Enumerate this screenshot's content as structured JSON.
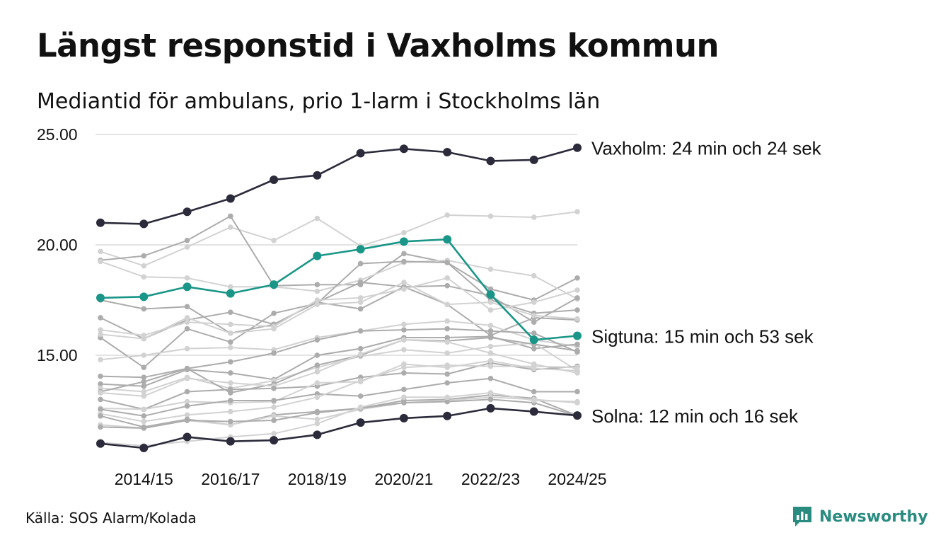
{
  "header": {
    "title": "Längst responstid i Vaxholms kommun",
    "subtitle": "Mediantid för ambulans, prio 1-larm i Stockholms län"
  },
  "footer": {
    "source": "Källa: SOS Alarm/Kolada",
    "brand": "Newsworthy"
  },
  "colors": {
    "highlight_dark": "#2b2b3b",
    "highlight_teal": "#1a9688",
    "background_light": "#d2d2d2",
    "background_mid": "#acacac",
    "grid": "#e3e3e3",
    "brand": "#2a8c80"
  },
  "chart_data": {
    "type": "line",
    "title": "Längst responstid i Vaxholms kommun",
    "subtitle": "Mediantid för ambulans, prio 1-larm i Stockholms län",
    "x": [
      "2013/14",
      "2014/15",
      "2015/16",
      "2016/17",
      "2017/18",
      "2018/19",
      "2019/20",
      "2020/21",
      "2021/22",
      "2022/23",
      "2023/24",
      "2024/25"
    ],
    "x_tick_labels": [
      "2014/15",
      "2016/17",
      "2018/19",
      "2020/21",
      "2022/23",
      "2024/25"
    ],
    "y_ticks": [
      15,
      20,
      25
    ],
    "y_tick_labels": [
      "15.00",
      "20.00",
      "25.00"
    ],
    "ylim": [
      10.5,
      25
    ],
    "xlabel": "",
    "ylabel": "",
    "grid": true,
    "highlighted_series": [
      {
        "name": "Vaxholm",
        "label": "Vaxholm: 24 min och 24 sek",
        "color": "#2b2b3b",
        "values": [
          21.0,
          20.95,
          21.5,
          22.1,
          22.95,
          23.15,
          24.15,
          24.35,
          24.2,
          23.8,
          23.85,
          24.4
        ]
      },
      {
        "name": "Sigtuna",
        "label": "Sigtuna: 15 min och 53 sek",
        "color": "#1a9688",
        "values": [
          17.6,
          17.65,
          18.1,
          17.8,
          18.2,
          19.5,
          19.8,
          20.15,
          20.25,
          17.75,
          15.7,
          15.88
        ]
      },
      {
        "name": "Solna",
        "label": "Solna: 12 min och 16 sek",
        "color": "#2b2b3b",
        "values": [
          11.0,
          10.8,
          11.3,
          11.1,
          11.15,
          11.4,
          11.95,
          12.15,
          12.25,
          12.6,
          12.45,
          12.27
        ]
      }
    ],
    "background_series": [
      {
        "name": "kommun-01",
        "shade": "light",
        "values": [
          19.7,
          19.05,
          19.9,
          20.8,
          20.2,
          21.2,
          19.95,
          20.55,
          21.35,
          21.3,
          21.25,
          21.5
        ]
      },
      {
        "name": "kommun-02",
        "shade": "mid",
        "values": [
          19.3,
          19.5,
          20.2,
          21.3,
          18.15,
          18.2,
          18.2,
          19.6,
          19.2,
          18.0,
          17.5,
          18.5
        ]
      },
      {
        "name": "kommun-03",
        "shade": "light",
        "values": [
          19.25,
          18.55,
          18.5,
          18.1,
          18.1,
          17.9,
          18.4,
          19.2,
          19.3,
          18.9,
          18.6,
          17.55
        ]
      },
      {
        "name": "kommun-04",
        "shade": "mid",
        "values": [
          17.5,
          17.1,
          17.2,
          16.0,
          16.4,
          17.4,
          18.3,
          18.1,
          17.3,
          15.9,
          16.7,
          16.6
        ]
      },
      {
        "name": "kommun-05",
        "shade": "mid",
        "values": [
          16.7,
          15.75,
          16.6,
          16.95,
          16.4,
          17.4,
          17.1,
          18.1,
          18.15,
          17.7,
          16.5,
          17.6
        ]
      },
      {
        "name": "kommun-06",
        "shade": "mid",
        "values": [
          15.8,
          14.45,
          16.2,
          15.6,
          16.9,
          17.35,
          19.15,
          19.25,
          19.2,
          17.5,
          16.9,
          17.05
        ]
      },
      {
        "name": "kommun-07",
        "shade": "light",
        "values": [
          16.15,
          15.9,
          16.5,
          16.4,
          16.3,
          17.5,
          17.6,
          18.0,
          18.5,
          17.05,
          17.4,
          17.95
        ]
      },
      {
        "name": "kommun-08",
        "shade": "light",
        "values": [
          15.95,
          15.75,
          16.7,
          16.0,
          16.2,
          17.3,
          17.4,
          18.3,
          17.3,
          17.4,
          16.8,
          16.65
        ]
      },
      {
        "name": "kommun-09",
        "shade": "light",
        "values": [
          14.8,
          15.0,
          15.3,
          15.35,
          15.25,
          15.8,
          16.1,
          16.4,
          16.55,
          16.35,
          15.7,
          15.4
        ]
      },
      {
        "name": "kommun-10",
        "shade": "mid",
        "values": [
          14.05,
          14.0,
          14.4,
          14.7,
          15.1,
          15.7,
          16.1,
          16.15,
          16.2,
          16.1,
          16.0,
          15.15
        ]
      },
      {
        "name": "kommun-11",
        "shade": "mid",
        "values": [
          13.7,
          13.6,
          14.35,
          14.2,
          13.9,
          15.0,
          15.3,
          15.8,
          15.8,
          15.85,
          15.3,
          15.5
        ]
      },
      {
        "name": "kommun-12",
        "shade": "light",
        "values": [
          13.5,
          13.35,
          14.0,
          13.5,
          13.85,
          14.45,
          14.95,
          15.25,
          15.1,
          15.4,
          15.55,
          14.3
        ]
      },
      {
        "name": "kommun-13",
        "shade": "mid",
        "values": [
          13.35,
          13.8,
          14.4,
          13.3,
          13.7,
          14.55,
          15.0,
          15.7,
          15.65,
          15.8,
          15.5,
          15.2
        ]
      },
      {
        "name": "kommun-14",
        "shade": "light",
        "values": [
          13.3,
          13.15,
          13.95,
          13.75,
          13.6,
          14.25,
          15.05,
          15.7,
          15.6,
          15.1,
          14.6,
          14.2
        ]
      },
      {
        "name": "kommun-15",
        "shade": "mid",
        "values": [
          13.0,
          12.55,
          13.35,
          13.45,
          13.5,
          13.6,
          14.0,
          14.2,
          14.15,
          14.65,
          14.35,
          14.5
        ]
      },
      {
        "name": "kommun-16",
        "shade": "light",
        "values": [
          12.6,
          12.55,
          12.9,
          12.85,
          12.9,
          13.75,
          13.8,
          14.6,
          14.45,
          14.75,
          14.4,
          14.3
        ]
      },
      {
        "name": "kommun-17",
        "shade": "mid",
        "values": [
          12.55,
          12.25,
          12.7,
          12.95,
          12.95,
          13.25,
          13.15,
          13.45,
          13.75,
          13.95,
          13.35,
          13.35
        ]
      },
      {
        "name": "kommun-18",
        "shade": "light",
        "values": [
          12.35,
          12.0,
          12.3,
          12.45,
          12.65,
          13.1,
          13.85,
          14.45,
          14.55,
          14.5,
          14.5,
          14.45
        ]
      },
      {
        "name": "kommun-19",
        "shade": "mid",
        "values": [
          12.25,
          11.75,
          12.1,
          11.85,
          12.3,
          12.45,
          12.6,
          12.95,
          13.0,
          13.2,
          13.05,
          12.27
        ]
      },
      {
        "name": "kommun-20",
        "shade": "light",
        "values": [
          11.85,
          11.7,
          12.05,
          11.85,
          12.25,
          12.1,
          12.55,
          12.85,
          12.95,
          13.1,
          13.0,
          12.85
        ]
      },
      {
        "name": "kommun-21",
        "shade": "mid",
        "values": [
          11.75,
          11.7,
          12.05,
          12.0,
          12.05,
          12.4,
          12.6,
          12.85,
          12.9,
          13.0,
          12.85,
          12.25
        ]
      },
      {
        "name": "kommun-22",
        "shade": "light",
        "values": [
          11.05,
          10.9,
          11.1,
          11.3,
          11.45,
          11.9,
          12.65,
          13.1,
          13.1,
          13.3,
          12.95,
          12.9
        ]
      }
    ]
  }
}
